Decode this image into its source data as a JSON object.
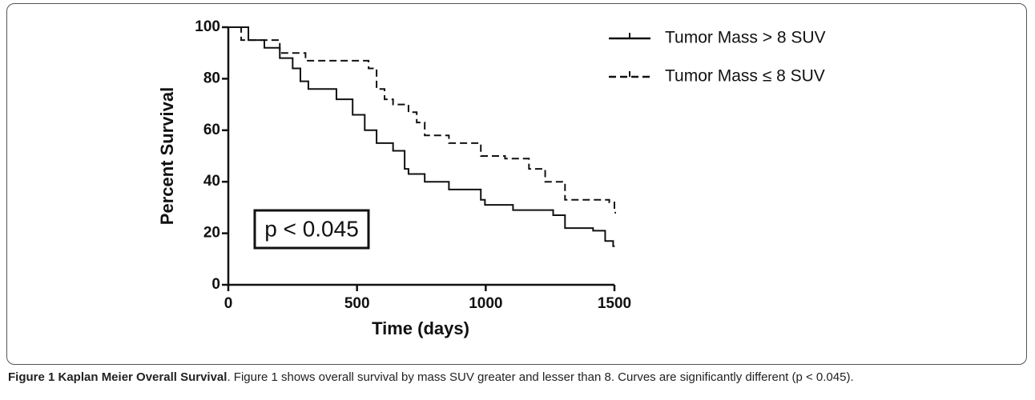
{
  "chart_data": {
    "type": "step",
    "xlabel": "Time  (days)",
    "ylabel": "Percent Survival",
    "annotation": "p < 0.045",
    "xlim": [
      0,
      1500
    ],
    "xticks": [
      0,
      500,
      1000,
      1500
    ],
    "ylim": [
      0,
      100
    ],
    "yticks": [
      0,
      20,
      40,
      60,
      80,
      100
    ],
    "legend": "upper right",
    "series": [
      {
        "name": "Tumor Mass > 8 SUV",
        "color": "#111111",
        "dash": "solid",
        "x": [
          0,
          78,
          140,
          200,
          250,
          280,
          311,
          420,
          483,
          530,
          576,
          640,
          685,
          700,
          763,
          857,
          981,
          997,
          1106,
          1262,
          1308,
          1417,
          1464,
          1495
        ],
        "values": [
          100,
          95,
          92,
          88,
          84,
          79,
          76,
          72,
          66,
          60,
          55,
          52,
          45,
          43,
          40,
          37,
          33,
          31,
          29,
          27,
          22,
          21,
          17,
          15
        ]
      },
      {
        "name": "Tumor Mass ≤ 8 SUV",
        "color": "#111111",
        "dash": "dashed",
        "x": [
          0,
          50,
          200,
          300,
          545,
          576,
          607,
          640,
          700,
          732,
          763,
          857,
          981,
          1075,
          1168,
          1231,
          1308,
          1480,
          1500
        ],
        "values": [
          100,
          95,
          90,
          87,
          84,
          76,
          72,
          70,
          67,
          63,
          58,
          55,
          50,
          49,
          45,
          40,
          33,
          32,
          28
        ]
      }
    ]
  },
  "caption": {
    "label": "Figure 1 Kaplan Meier Overall Survival",
    "text": ". Figure 1 shows overall survival by mass SUV greater and lesser than 8. Curves are significantly different (p < 0.045)."
  }
}
